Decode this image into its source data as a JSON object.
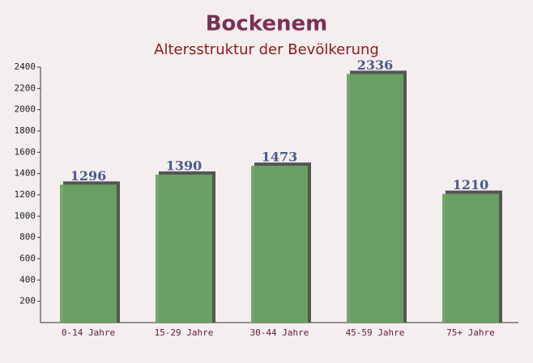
{
  "chart_data": {
    "type": "bar",
    "title": "Bockenem",
    "subtitle": "Altersstruktur der Bevölkerung",
    "categories": [
      "0-14 Jahre",
      "15-29 Jahre",
      "30-44 Jahre",
      "45-59 Jahre",
      "75+ Jahre"
    ],
    "values": [
      1296,
      1390,
      1473,
      2336,
      1210
    ],
    "color": "#6aa363",
    "ylim": [
      0,
      2400
    ],
    "yticks": [
      200,
      400,
      600,
      800,
      1000,
      1200,
      1400,
      1600,
      1800,
      2000,
      2200,
      2400
    ]
  }
}
